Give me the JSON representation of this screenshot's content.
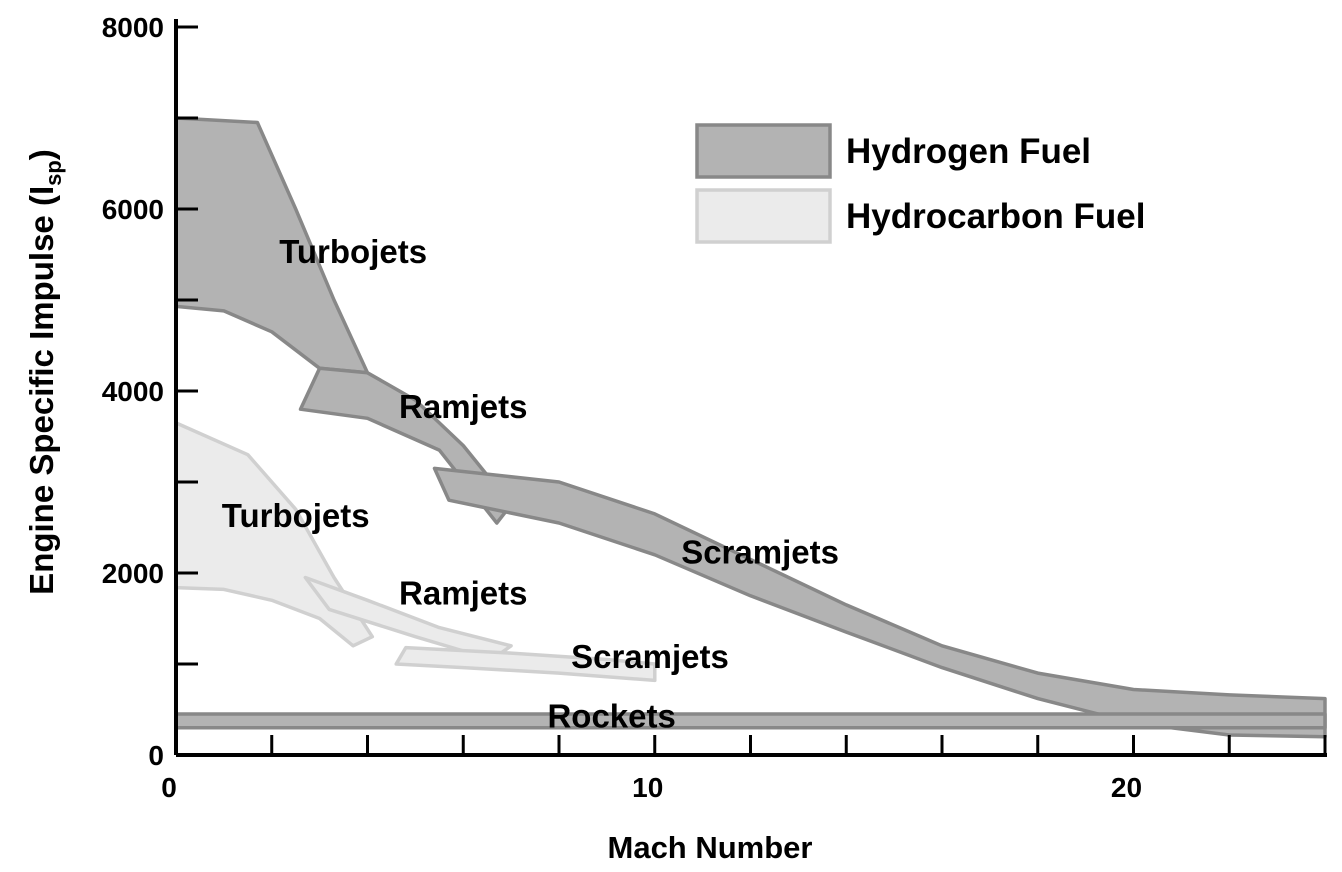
{
  "chart_data": {
    "type": "area",
    "title": "",
    "xlabel": "Mach Number",
    "ylabel": {
      "main": "Engine Specific Impulse (I",
      "sub": "sp",
      "close": ")"
    },
    "xlim": [
      0,
      24
    ],
    "ylim": [
      0,
      8000
    ],
    "x_ticks": [
      0,
      10,
      20
    ],
    "y_ticks": [
      0,
      2000,
      4000,
      6000,
      8000
    ],
    "x_minor_step": 2,
    "y_minor_step": 1000,
    "grid": false,
    "legend_position": "top-right",
    "legend": [
      {
        "label": "Hydrogen Fuel",
        "fill": "#b3b3b3",
        "stroke": "#888888"
      },
      {
        "label": "Hydrocarbon Fuel",
        "fill": "#ebebeb",
        "stroke": "#d0d0d0"
      }
    ],
    "series": [
      {
        "fuel": "Hydrogen Fuel",
        "engine": "Turbojets",
        "label": {
          "text": "Turbojets",
          "x": 3.7,
          "y": 5500
        },
        "upper": [
          [
            0,
            7000
          ],
          [
            1.7,
            6950
          ],
          [
            2.5,
            6000
          ],
          [
            3.3,
            5000
          ],
          [
            4.0,
            4200
          ]
        ],
        "lower": [
          [
            4.0,
            4200
          ],
          [
            3.0,
            4250
          ],
          [
            2.0,
            4650
          ],
          [
            1.0,
            4880
          ],
          [
            0,
            4930
          ]
        ]
      },
      {
        "fuel": "Hydrogen Fuel",
        "engine": "Ramjets",
        "label": {
          "text": "Ramjets",
          "x": 6.0,
          "y": 3800
        },
        "upper": [
          [
            3.0,
            4250
          ],
          [
            4.0,
            4200
          ],
          [
            5.0,
            3900
          ],
          [
            6.0,
            3400
          ],
          [
            7.0,
            2750
          ]
        ],
        "lower": [
          [
            7.0,
            2750
          ],
          [
            6.7,
            2550
          ],
          [
            5.5,
            3350
          ],
          [
            4.0,
            3700
          ],
          [
            2.6,
            3800
          ]
        ]
      },
      {
        "fuel": "Hydrogen Fuel",
        "engine": "Scramjets",
        "label": {
          "text": "Scramjets",
          "x": 12.2,
          "y": 2200
        },
        "upper": [
          [
            5.4,
            3150
          ],
          [
            8.0,
            3000
          ],
          [
            10.0,
            2650
          ],
          [
            12.0,
            2150
          ],
          [
            14.0,
            1650
          ],
          [
            16.0,
            1200
          ],
          [
            18.0,
            900
          ],
          [
            20.0,
            720
          ],
          [
            22.0,
            660
          ],
          [
            24.0,
            620
          ]
        ],
        "lower": [
          [
            24.0,
            200
          ],
          [
            22.0,
            220
          ],
          [
            20.0,
            350
          ],
          [
            18.0,
            620
          ],
          [
            16.0,
            960
          ],
          [
            14.0,
            1350
          ],
          [
            12.0,
            1750
          ],
          [
            10.0,
            2200
          ],
          [
            8.0,
            2550
          ],
          [
            5.7,
            2800
          ]
        ]
      },
      {
        "fuel": "Hydrogen Fuel",
        "engine": "Rockets",
        "label": {
          "text": "Rockets",
          "x": 9.1,
          "y": 400
        },
        "upper": [
          [
            0,
            450
          ],
          [
            24.0,
            450
          ]
        ],
        "lower": [
          [
            24.0,
            300
          ],
          [
            0,
            300
          ]
        ]
      },
      {
        "fuel": "Hydrocarbon Fuel",
        "engine": "Turbojets",
        "label": {
          "text": "Turbojets",
          "x": 2.5,
          "y": 2600
        },
        "upper": [
          [
            0,
            3650
          ],
          [
            1.5,
            3300
          ],
          [
            2.5,
            2700
          ],
          [
            3.3,
            1950
          ],
          [
            4.1,
            1300
          ]
        ],
        "lower": [
          [
            4.1,
            1300
          ],
          [
            3.7,
            1200
          ],
          [
            3.0,
            1500
          ],
          [
            2.0,
            1700
          ],
          [
            1.0,
            1820
          ],
          [
            0,
            1840
          ]
        ]
      },
      {
        "fuel": "Hydrocarbon Fuel",
        "engine": "Ramjets",
        "label": {
          "text": "Ramjets",
          "x": 6.0,
          "y": 1750
        },
        "upper": [
          [
            2.7,
            1950
          ],
          [
            4.0,
            1700
          ],
          [
            5.5,
            1400
          ],
          [
            7.0,
            1200
          ]
        ],
        "lower": [
          [
            7.0,
            1200
          ],
          [
            6.6,
            1050
          ],
          [
            5.0,
            1300
          ],
          [
            3.2,
            1600
          ]
        ]
      },
      {
        "fuel": "Hydrocarbon Fuel",
        "engine": "Scramjets",
        "label": {
          "text": "Scramjets",
          "x": 9.9,
          "y": 1050
        },
        "upper": [
          [
            4.8,
            1180
          ],
          [
            7.0,
            1120
          ],
          [
            9.0,
            1050
          ],
          [
            10.0,
            1000
          ]
        ],
        "lower": [
          [
            10.0,
            820
          ],
          [
            8.0,
            900
          ],
          [
            6.0,
            960
          ],
          [
            4.6,
            1000
          ]
        ]
      }
    ]
  }
}
